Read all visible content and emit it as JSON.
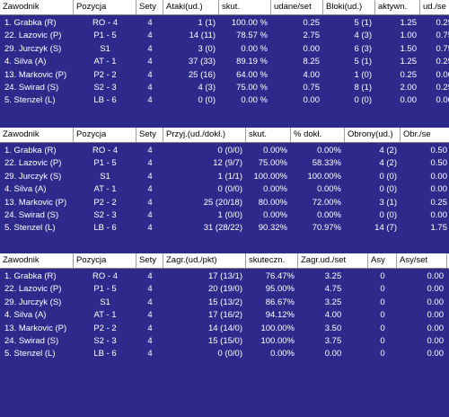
{
  "colors": {
    "panel_bg": "#2e2a8c",
    "header_bg": "#ffffff",
    "header_text": "#000000",
    "row_text": "#ffffff"
  },
  "tables": [
    {
      "name": "attack",
      "headers": [
        "Zawodnik",
        "Pozycja",
        "Sety",
        "Ataki(ud.)",
        "skut.",
        "udane/set",
        "Bloki(ud.)",
        "aktywn.",
        "ud./se"
      ],
      "rows": [
        [
          "1. Grabka (R)",
          "RO - 4",
          "4",
          "1 (1)",
          "100.00 %",
          "0.25",
          "5 (1)",
          "1.25",
          "0.25"
        ],
        [
          "22. Lazovic (P)",
          "P1 - 5",
          "4",
          "14 (11)",
          "78.57 %",
          "2.75",
          "4 (3)",
          "1.00",
          "0.75"
        ],
        [
          "29. Jurczyk (S)",
          "S1",
          "4",
          "3 (0)",
          "0.00 %",
          "0.00",
          "6 (3)",
          "1.50",
          "0.75"
        ],
        [
          "4. Silva (A)",
          "AT - 1",
          "4",
          "37 (33)",
          "89.19 %",
          "8.25",
          "5 (1)",
          "1.25",
          "0.25"
        ],
        [
          "13. Markovic (P)",
          "P2 - 2",
          "4",
          "25 (16)",
          "64.00 %",
          "4.00",
          "1 (0)",
          "0.25",
          "0.00"
        ],
        [
          "24. Swirad (S)",
          "S2 - 3",
          "4",
          "4 (3)",
          "75.00 %",
          "0.75",
          "8 (1)",
          "2.00",
          "0.25"
        ],
        [
          "5. Stenzel (L)",
          "LB - 6",
          "4",
          "0 (0)",
          "0.00 %",
          "0.00",
          "0 (0)",
          "0.00",
          "0.00"
        ]
      ]
    },
    {
      "name": "reception",
      "headers": [
        "Zawodnik",
        "Pozycja",
        "Sety",
        "Przyj.(ud./dokł.)",
        "skut.",
        "% dokł.",
        "Obrony(ud.)",
        "Obr./se"
      ],
      "rows": [
        [
          "1. Grabka (R)",
          "RO - 4",
          "4",
          "0 (0/0)",
          "0.00%",
          "0.00%",
          "4 (2)",
          "0.50"
        ],
        [
          "22. Lazovic (P)",
          "P1 - 5",
          "4",
          "12 (9/7)",
          "75.00%",
          "58.33%",
          "4 (2)",
          "0.50"
        ],
        [
          "29. Jurczyk (S)",
          "S1",
          "4",
          "1 (1/1)",
          "100.00%",
          "100.00%",
          "0 (0)",
          "0.00"
        ],
        [
          "4. Silva (A)",
          "AT - 1",
          "4",
          "0 (0/0)",
          "0.00%",
          "0.00%",
          "0 (0)",
          "0.00"
        ],
        [
          "13. Markovic (P)",
          "P2 - 2",
          "4",
          "25 (20/18)",
          "80.00%",
          "72.00%",
          "3 (1)",
          "0.25"
        ],
        [
          "24. Swirad (S)",
          "S2 - 3",
          "4",
          "1 (0/0)",
          "0.00%",
          "0.00%",
          "0 (0)",
          "0.00"
        ],
        [
          "5. Stenzel (L)",
          "LB - 6",
          "4",
          "31 (28/22)",
          "90.32%",
          "70.97%",
          "14 (7)",
          "1.75"
        ]
      ]
    },
    {
      "name": "serve",
      "headers": [
        "Zawodnik",
        "Pozycja",
        "Sety",
        "Zagr.(ud./pkt)",
        "skuteczn.",
        "Zagr.ud./set",
        "Asy",
        "Asy/set"
      ],
      "rows": [
        [
          "1. Grabka (R)",
          "RO - 4",
          "4",
          "17 (13/1)",
          "76.47%",
          "3.25",
          "0",
          "0.00"
        ],
        [
          "22. Lazovic (P)",
          "P1 - 5",
          "4",
          "20 (19/0)",
          "95.00%",
          "4.75",
          "0",
          "0.00"
        ],
        [
          "29. Jurczyk (S)",
          "S1",
          "4",
          "15 (13/2)",
          "86.67%",
          "3.25",
          "0",
          "0.00"
        ],
        [
          "4. Silva (A)",
          "AT - 1",
          "4",
          "17 (16/2)",
          "94.12%",
          "4.00",
          "0",
          "0.00"
        ],
        [
          "13. Markovic (P)",
          "P2 - 2",
          "4",
          "14 (14/0)",
          "100.00%",
          "3.50",
          "0",
          "0.00"
        ],
        [
          "24. Swirad (S)",
          "S2 - 3",
          "4",
          "15 (15/0)",
          "100.00%",
          "3.75",
          "0",
          "0.00"
        ],
        [
          "5. Stenzel (L)",
          "LB - 6",
          "4",
          "0 (0/0)",
          "0.00%",
          "0.00",
          "0",
          "0.00"
        ]
      ]
    }
  ]
}
